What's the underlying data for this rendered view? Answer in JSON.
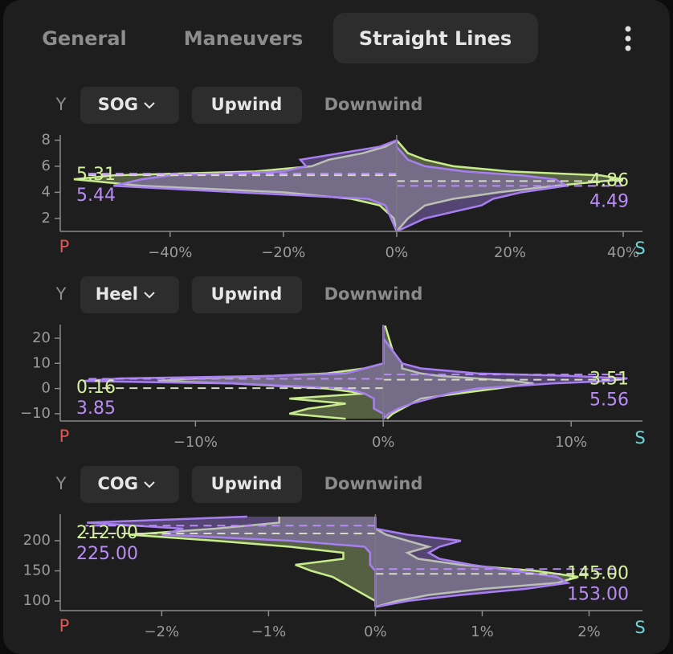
{
  "tabs": [
    "General",
    "Maneuvers",
    "Straight Lines"
  ],
  "chart_data": [
    {
      "type": "mirror-density",
      "axis_letter": "Y",
      "selector": "SOG",
      "buttons": [
        "Upwind",
        "Downwind"
      ],
      "port_label": "P",
      "starboard_label": "S",
      "y": [
        1,
        2,
        3,
        3.5,
        4,
        4.5,
        5,
        5.3,
        5.6,
        6,
        6.5,
        7,
        7.5,
        8
      ],
      "port": [
        {
          "color": "#c8ec8c",
          "values": [
            0,
            -0.5,
            -3,
            -8,
            -20,
            -45,
            -57,
            -50,
            -25,
            -15,
            -12,
            -6,
            -2,
            0
          ],
          "median": 5.31
        },
        {
          "color": "#a87ff0",
          "values": [
            0,
            -1,
            -2,
            -5,
            -28,
            -50,
            -45,
            -40,
            -20,
            -16,
            -17,
            -10,
            -3,
            0
          ],
          "median": 5.44
        }
      ],
      "starboard": [
        {
          "color": "#c8ec8c",
          "values": [
            0,
            2,
            5,
            10,
            18,
            28,
            40,
            36,
            20,
            10,
            5,
            2,
            1,
            0
          ],
          "median": 4.86
        },
        {
          "color": "#a87ff0",
          "values": [
            0,
            5,
            15,
            17,
            22,
            30,
            28,
            22,
            12,
            5,
            2,
            1,
            0,
            0
          ],
          "median": 4.49
        }
      ],
      "xlim": [
        -59.4,
        43.4
      ],
      "ylim": [
        1,
        8.4
      ],
      "xticks": [
        {
          "value": -40,
          "label": "−40%"
        },
        {
          "value": -20,
          "label": "−20%"
        },
        {
          "value": 0,
          "label": "0%"
        },
        {
          "value": 20,
          "label": "20%"
        },
        {
          "value": 40,
          "label": "40%"
        }
      ],
      "yticks": [
        2,
        4,
        6,
        8
      ]
    },
    {
      "type": "mirror-density",
      "axis_letter": "Y",
      "selector": "Heel",
      "buttons": [
        "Upwind",
        "Downwind"
      ],
      "port_label": "P",
      "starboard_label": "S",
      "y": [
        -12,
        -10,
        -8,
        -6,
        -4,
        -2,
        0,
        2,
        3,
        4,
        5,
        6,
        8,
        10,
        15,
        20,
        25
      ],
      "port": [
        {
          "color": "#c8ec8c",
          "values": [
            -2,
            -5,
            -4,
            -2,
            -5,
            -1,
            -3,
            -8,
            -12,
            -10,
            -6,
            -3,
            -1,
            0,
            0,
            0,
            0
          ],
          "median": 0.16
        },
        {
          "color": "#a87ff0",
          "values": [
            0,
            0,
            -0.5,
            -0.5,
            -0.5,
            -1,
            -2,
            -8,
            -16,
            -14,
            -6,
            -2,
            -1,
            0,
            0,
            0,
            0
          ],
          "median": 3.85
        }
      ],
      "starboard": [
        {
          "color": "#c8ec8c",
          "values": [
            0.2,
            0.5,
            1,
            1.5,
            2,
            4,
            6,
            8,
            7,
            5,
            3,
            2,
            1,
            1,
            0.5,
            0.3,
            0.1
          ],
          "median": 3.51
        },
        {
          "color": "#a87ff0",
          "values": [
            0,
            0.3,
            0.8,
            1.5,
            2.5,
            3.5,
            5,
            9,
            12,
            13,
            10,
            5,
            2,
            1,
            0.5,
            0,
            0
          ],
          "median": 5.56
        }
      ],
      "xlim": [
        -17.2,
        13.8
      ],
      "ylim": [
        -12.9,
        25.4
      ],
      "xticks": [
        {
          "value": -10,
          "label": "−10%"
        },
        {
          "value": 0,
          "label": "0%"
        },
        {
          "value": 10,
          "label": "10%"
        }
      ],
      "yticks": [
        {
          "value": -10,
          "label": "−10"
        },
        0,
        10,
        20
      ]
    },
    {
      "type": "mirror-density",
      "axis_letter": "Y",
      "selector": "COG",
      "buttons": [
        "Upwind",
        "Downwind"
      ],
      "port_label": "P",
      "starboard_label": "S",
      "y": [
        90,
        100,
        110,
        120,
        130,
        140,
        150,
        160,
        170,
        180,
        190,
        200,
        210,
        220,
        230,
        240
      ],
      "port": [
        {
          "color": "#c8ec8c",
          "values": [
            0,
            0,
            -0.1,
            -0.2,
            -0.3,
            -0.4,
            -0.6,
            -0.75,
            -0.3,
            -0.3,
            -0.8,
            -1.5,
            -2.3,
            -1.5,
            -0.9,
            -0.9
          ],
          "median": 212,
          "median_label": "212.00"
        },
        {
          "color": "#a87ff0",
          "values": [
            0,
            0,
            0,
            0,
            0,
            0,
            0,
            -0.05,
            -0.05,
            -0.05,
            -0.1,
            -0.8,
            -2.0,
            -1.8,
            -2.7,
            -1.2
          ],
          "median": 225,
          "median_label": "225.00"
        }
      ],
      "starboard": [
        {
          "color": "#c8ec8c",
          "values": [
            0,
            0.2,
            0.5,
            1.0,
            1.7,
            1.9,
            1.5,
            0.8,
            0.4,
            0.3,
            0.5,
            0.3,
            0.1,
            0,
            0,
            0
          ],
          "median": 145,
          "median_label": "145.00"
        },
        {
          "color": "#a87ff0",
          "values": [
            0,
            0.3,
            0.8,
            1.4,
            1.8,
            1.7,
            1.3,
            0.9,
            0.6,
            0.5,
            0.6,
            0.8,
            0.3,
            0,
            0,
            0
          ],
          "median": 153,
          "median_label": "153.00"
        }
      ],
      "xlim": [
        -2.95,
        2.5
      ],
      "ylim": [
        84,
        244
      ],
      "xticks": [
        {
          "value": -2,
          "label": "−2%"
        },
        {
          "value": -1,
          "label": "−1%"
        },
        {
          "value": 0,
          "label": "0%"
        },
        {
          "value": 1,
          "label": "1%"
        },
        {
          "value": 2,
          "label": "2%"
        }
      ],
      "yticks": [
        100,
        150,
        200
      ]
    }
  ]
}
